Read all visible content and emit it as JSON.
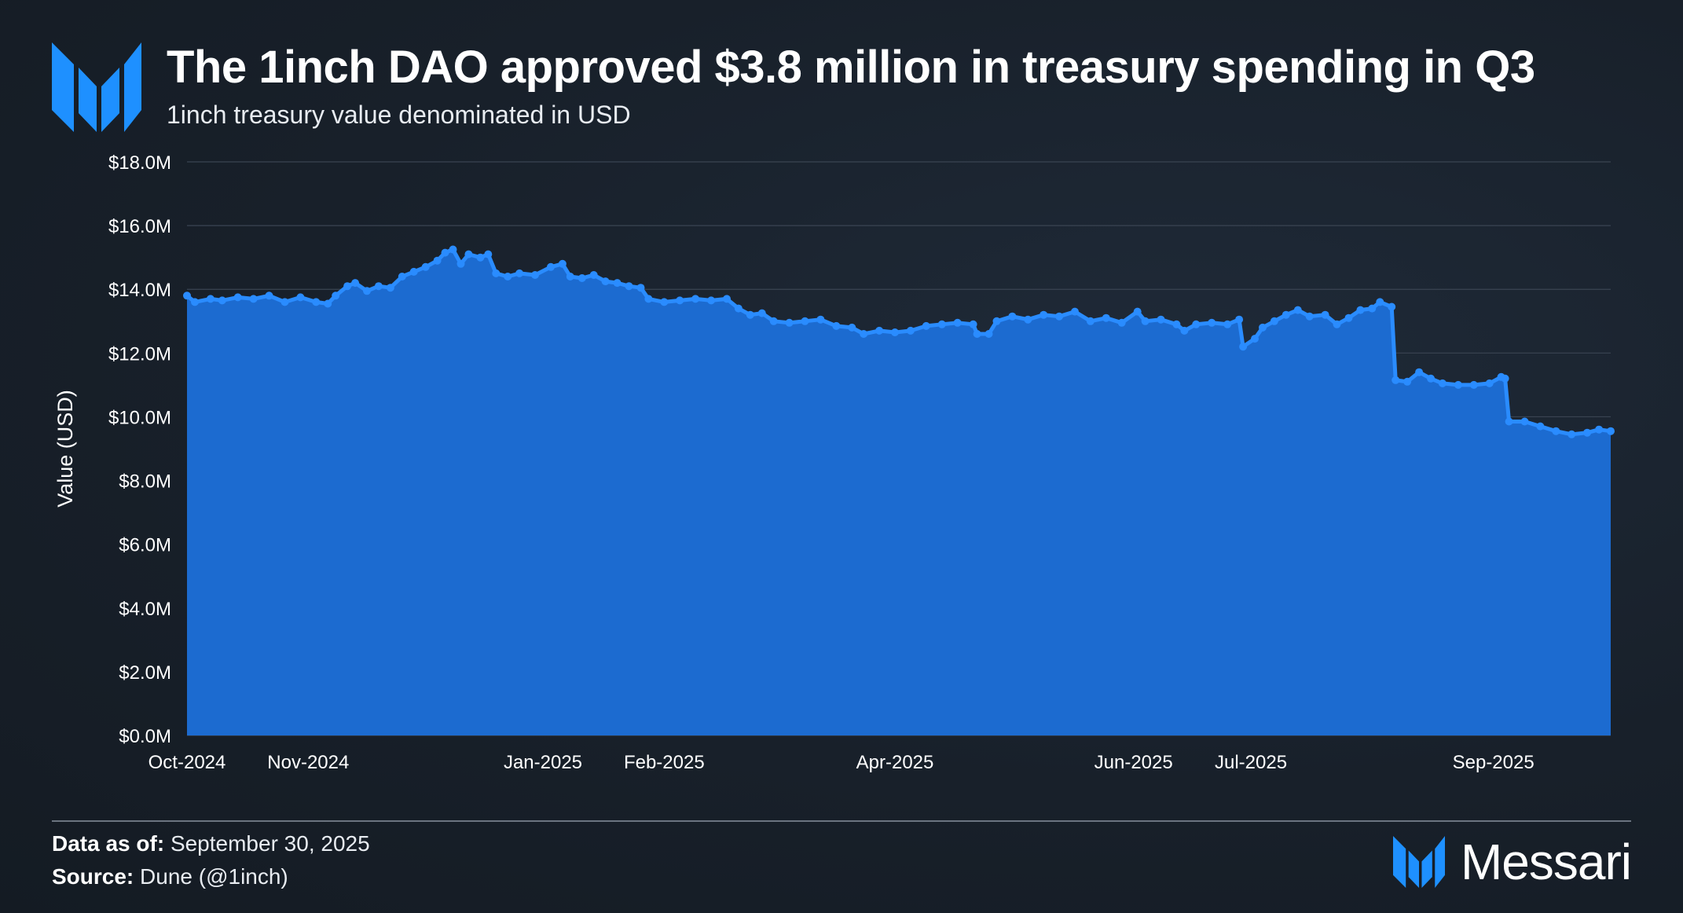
{
  "header": {
    "title": "The 1inch DAO approved $3.8 million in treasury spending in Q3",
    "subtitle": "1inch treasury value denominated in USD"
  },
  "footer": {
    "data_as_of_label": "Data as of:",
    "data_as_of_value": "September 30, 2025",
    "source_label": "Source:",
    "source_value": "Dune (@1inch)",
    "brand": "Messari"
  },
  "colors": {
    "accent": "#1f8bff",
    "area_fill": "#1c6bd0",
    "line": "#2a8cff",
    "logo": "#1e90ff"
  },
  "icons": {
    "logo": "messari-logo-icon"
  },
  "chart_data": {
    "type": "area",
    "title": "The 1inch DAO approved $3.8 million in treasury spending in Q3",
    "subtitle": "1inch treasury value denominated in USD",
    "ylabel": "Value (USD)",
    "xlabel": "",
    "ylim": [
      0,
      18000000
    ],
    "y_ticks": [
      "$0.0M",
      "$2.0M",
      "$4.0M",
      "$6.0M",
      "$8.0M",
      "$10.0M",
      "$12.0M",
      "$14.0M",
      "$16.0M",
      "$18.0M"
    ],
    "x_ticks": [
      "Oct-2024",
      "Nov-2024",
      "Jan-2025",
      "Feb-2025",
      "Apr-2025",
      "Jun-2025",
      "Jul-2025",
      "Sep-2025"
    ],
    "xlim": [
      "2024-10-01",
      "2025-09-30"
    ],
    "grid": true,
    "legend": "none",
    "series": [
      {
        "values": [
          [
            "2024-10-01",
            13.8
          ],
          [
            "2024-10-03",
            13.6
          ],
          [
            "2024-10-07",
            13.7
          ],
          [
            "2024-10-10",
            13.65
          ],
          [
            "2024-10-14",
            13.75
          ],
          [
            "2024-10-18",
            13.7
          ],
          [
            "2024-10-22",
            13.8
          ],
          [
            "2024-10-26",
            13.6
          ],
          [
            "2024-10-30",
            13.75
          ],
          [
            "2024-11-03",
            13.6
          ],
          [
            "2024-11-06",
            13.55
          ],
          [
            "2024-11-08",
            13.8
          ],
          [
            "2024-11-11",
            14.1
          ],
          [
            "2024-11-13",
            14.2
          ],
          [
            "2024-11-16",
            13.95
          ],
          [
            "2024-11-19",
            14.1
          ],
          [
            "2024-11-22",
            14.05
          ],
          [
            "2024-11-25",
            14.4
          ],
          [
            "2024-11-28",
            14.55
          ],
          [
            "2024-12-01",
            14.7
          ],
          [
            "2024-12-04",
            14.9
          ],
          [
            "2024-12-06",
            15.15
          ],
          [
            "2024-12-08",
            15.25
          ],
          [
            "2024-12-10",
            14.8
          ],
          [
            "2024-12-12",
            15.1
          ],
          [
            "2024-12-15",
            15.0
          ],
          [
            "2024-12-17",
            15.1
          ],
          [
            "2024-12-19",
            14.5
          ],
          [
            "2024-12-22",
            14.4
          ],
          [
            "2024-12-25",
            14.5
          ],
          [
            "2024-12-29",
            14.45
          ],
          [
            "2025-01-02",
            14.7
          ],
          [
            "2025-01-05",
            14.8
          ],
          [
            "2025-01-07",
            14.4
          ],
          [
            "2025-01-10",
            14.35
          ],
          [
            "2025-01-13",
            14.45
          ],
          [
            "2025-01-16",
            14.25
          ],
          [
            "2025-01-19",
            14.2
          ],
          [
            "2025-01-22",
            14.1
          ],
          [
            "2025-01-25",
            14.05
          ],
          [
            "2025-01-27",
            13.7
          ],
          [
            "2025-01-31",
            13.6
          ],
          [
            "2025-02-04",
            13.65
          ],
          [
            "2025-02-08",
            13.7
          ],
          [
            "2025-02-12",
            13.65
          ],
          [
            "2025-02-16",
            13.7
          ],
          [
            "2025-02-19",
            13.4
          ],
          [
            "2025-02-22",
            13.2
          ],
          [
            "2025-02-25",
            13.25
          ],
          [
            "2025-02-28",
            13.0
          ],
          [
            "2025-03-04",
            12.95
          ],
          [
            "2025-03-08",
            13.0
          ],
          [
            "2025-03-12",
            13.05
          ],
          [
            "2025-03-16",
            12.85
          ],
          [
            "2025-03-20",
            12.8
          ],
          [
            "2025-03-23",
            12.6
          ],
          [
            "2025-03-27",
            12.7
          ],
          [
            "2025-03-31",
            12.65
          ],
          [
            "2025-04-04",
            12.7
          ],
          [
            "2025-04-08",
            12.85
          ],
          [
            "2025-04-12",
            12.9
          ],
          [
            "2025-04-16",
            12.95
          ],
          [
            "2025-04-20",
            12.9
          ],
          [
            "2025-04-21",
            12.6
          ],
          [
            "2025-04-24",
            12.6
          ],
          [
            "2025-04-26",
            13.0
          ],
          [
            "2025-04-30",
            13.15
          ],
          [
            "2025-05-04",
            13.05
          ],
          [
            "2025-05-08",
            13.2
          ],
          [
            "2025-05-12",
            13.15
          ],
          [
            "2025-05-16",
            13.3
          ],
          [
            "2025-05-20",
            13.0
          ],
          [
            "2025-05-24",
            13.1
          ],
          [
            "2025-05-28",
            12.95
          ],
          [
            "2025-06-01",
            13.3
          ],
          [
            "2025-06-03",
            13.0
          ],
          [
            "2025-06-07",
            13.05
          ],
          [
            "2025-06-11",
            12.9
          ],
          [
            "2025-06-13",
            12.7
          ],
          [
            "2025-06-16",
            12.9
          ],
          [
            "2025-06-20",
            12.95
          ],
          [
            "2025-06-24",
            12.9
          ],
          [
            "2025-06-27",
            13.05
          ],
          [
            "2025-06-28",
            12.2
          ],
          [
            "2025-07-01",
            12.45
          ],
          [
            "2025-07-03",
            12.8
          ],
          [
            "2025-07-06",
            13.0
          ],
          [
            "2025-07-09",
            13.2
          ],
          [
            "2025-07-12",
            13.35
          ],
          [
            "2025-07-15",
            13.15
          ],
          [
            "2025-07-19",
            13.2
          ],
          [
            "2025-07-22",
            12.9
          ],
          [
            "2025-07-25",
            13.1
          ],
          [
            "2025-07-28",
            13.35
          ],
          [
            "2025-07-31",
            13.4
          ],
          [
            "2025-08-02",
            13.6
          ],
          [
            "2025-08-05",
            13.45
          ],
          [
            "2025-08-06",
            11.15
          ],
          [
            "2025-08-09",
            11.1
          ],
          [
            "2025-08-12",
            11.4
          ],
          [
            "2025-08-15",
            11.2
          ],
          [
            "2025-08-18",
            11.05
          ],
          [
            "2025-08-22",
            11.0
          ],
          [
            "2025-08-26",
            11.0
          ],
          [
            "2025-08-30",
            11.05
          ],
          [
            "2025-09-02",
            11.25
          ],
          [
            "2025-09-03",
            11.2
          ],
          [
            "2025-09-04",
            9.85
          ],
          [
            "2025-09-08",
            9.85
          ],
          [
            "2025-09-12",
            9.7
          ],
          [
            "2025-09-16",
            9.55
          ],
          [
            "2025-09-20",
            9.45
          ],
          [
            "2025-09-24",
            9.5
          ],
          [
            "2025-09-27",
            9.6
          ],
          [
            "2025-09-30",
            9.55
          ]
        ],
        "units": "USD millions"
      }
    ]
  }
}
